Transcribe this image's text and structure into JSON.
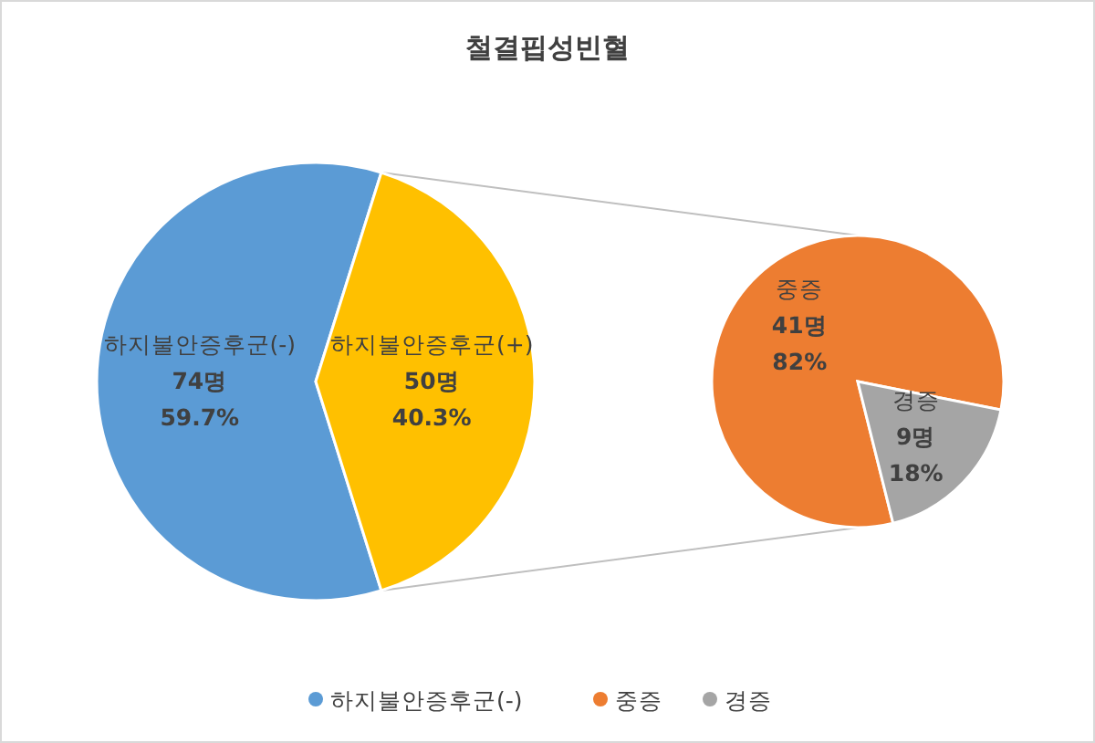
{
  "chart_data": [
    {
      "type": "pie",
      "title": "철결핍성빈혈",
      "categories": [
        "하지불안증후군(-)",
        "하지불안증후군(+)"
      ],
      "values": [
        74,
        50
      ],
      "colors": [
        "#5b9bd5",
        "#ffc000"
      ],
      "value_labels": [
        "74명\n59.7%",
        "50명\n40.3%"
      ],
      "legend": "bottom"
    },
    {
      "type": "pie",
      "categories": [
        "중증",
        "경증"
      ],
      "values": [
        41,
        9
      ],
      "colors": [
        "#ed7d31",
        "#a5a5a5"
      ],
      "value_labels": [
        "41명\n82%",
        "9명\n18%"
      ],
      "legend": "bottom"
    }
  ]
}
